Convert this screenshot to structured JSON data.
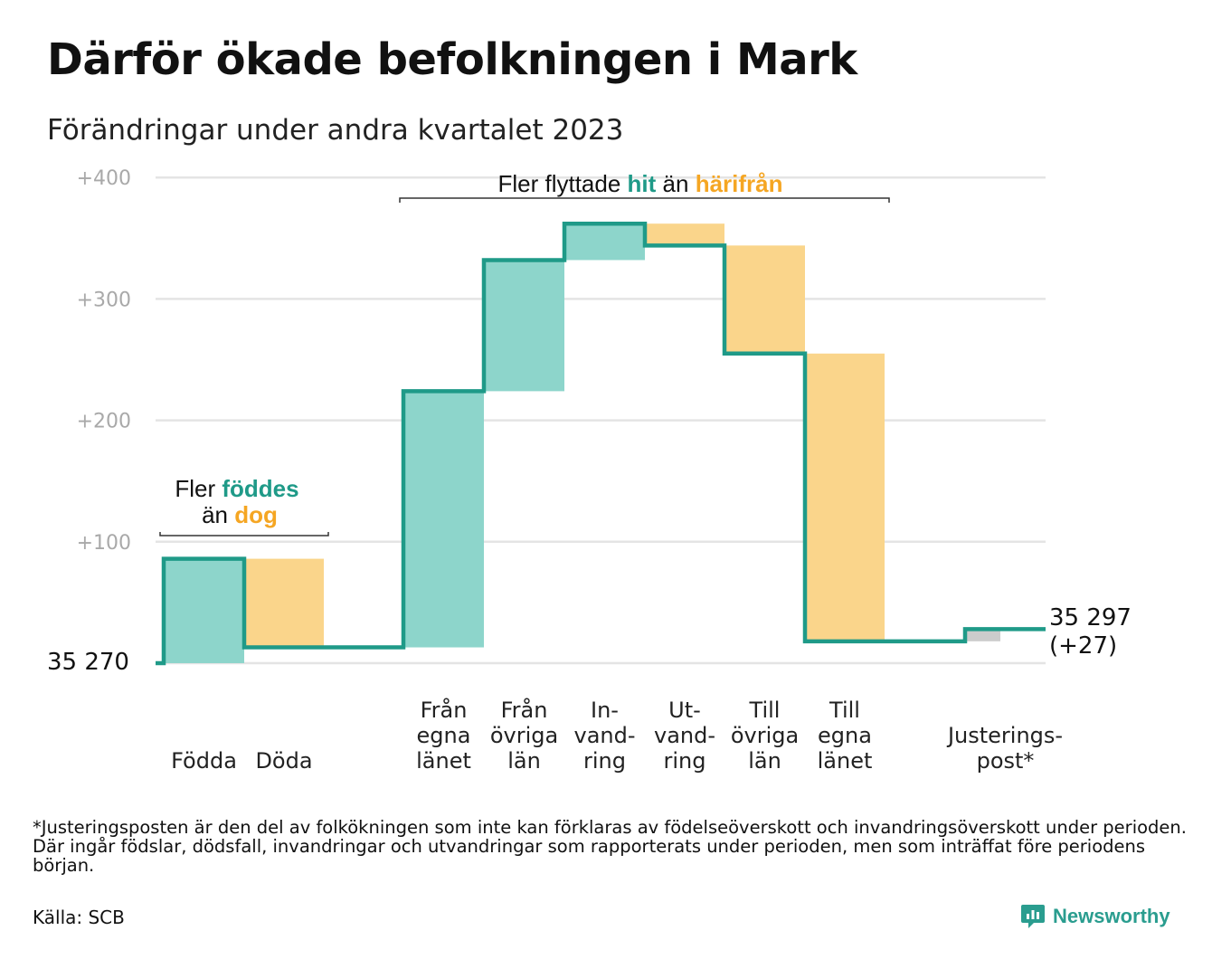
{
  "title": "Därför ökade befolkningen i Mark",
  "subtitle": "Förändringar under andra kvartalet 2023",
  "colors": {
    "increase_fill": "#8dd5cb",
    "decrease_fill": "#fad58b",
    "adjustment_fill": "#cccccc",
    "line": "#1f9a88",
    "highlight_teal": "#1f9a88",
    "highlight_orange": "#f5a623",
    "grid": "#e4e4e4",
    "tick_text": "#a9a9a9"
  },
  "annotations": {
    "natural": {
      "line1_prefix": "Fler ",
      "line1_highlight": "föddes",
      "line2_prefix": "än ",
      "line2_highlight": "dog"
    },
    "migration": {
      "prefix": "Fler flyttade ",
      "highlight1": "hit",
      "middle": " än ",
      "highlight2": "härifrån"
    }
  },
  "chart_data": {
    "type": "waterfall",
    "start_value": 35270,
    "start_label": "35  270",
    "end_value": 35297,
    "end_label_line1": "35 297",
    "end_label_line2": "(+27)",
    "yticks": [
      {
        "value": 100,
        "label": "+100"
      },
      {
        "value": 200,
        "label": "+200"
      },
      {
        "value": 300,
        "label": "+300"
      },
      {
        "value": 400,
        "label": "+400"
      }
    ],
    "ylim": [
      0,
      400
    ],
    "grid": true,
    "steps": [
      {
        "label": [
          "Födda"
        ],
        "change": 86,
        "kind": "increase"
      },
      {
        "label": [
          "Döda"
        ],
        "change": -73,
        "kind": "decrease"
      },
      {
        "label": [],
        "change": 0,
        "kind": "gap"
      },
      {
        "label": [
          "Från",
          "egna",
          "länet"
        ],
        "change": 211,
        "kind": "increase"
      },
      {
        "label": [
          "Från",
          "övriga",
          "län"
        ],
        "change": 108,
        "kind": "increase"
      },
      {
        "label": [
          "In-",
          "vand-",
          "ring"
        ],
        "change": 30,
        "kind": "increase"
      },
      {
        "label": [
          "Ut-",
          "vand-",
          "ring"
        ],
        "change": -18,
        "kind": "decrease"
      },
      {
        "label": [
          "Till",
          "övriga",
          "län"
        ],
        "change": -89,
        "kind": "decrease"
      },
      {
        "label": [
          "Till",
          "egna",
          "länet"
        ],
        "change": -237,
        "kind": "decrease"
      },
      {
        "label": [],
        "change": 0,
        "kind": "gap"
      },
      {
        "label": [
          "Justerings-",
          "post*"
        ],
        "change": 10,
        "kind": "adjustment"
      }
    ]
  },
  "footnote": "*Justeringsposten är den del av folkökningen som inte kan förklaras av födelseöverskott och invandringsöverskott under perioden. Där ingår födslar, dödsfall, invandringar och utvandringar som rapporterats under perioden, men som inträffat före periodens början.",
  "source": "Källa: SCB",
  "logo": {
    "text": "Newsworthy",
    "icon": "newsworthy-logo-icon"
  }
}
